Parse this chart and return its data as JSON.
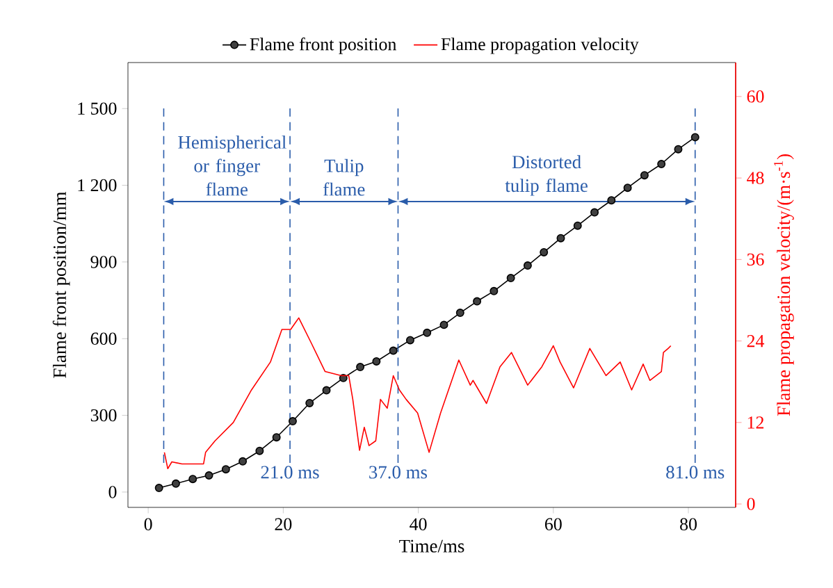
{
  "chart_data": {
    "type": "line",
    "xlabel": "Time/ms",
    "ylabel": "Flame front position/mm",
    "y2label": "Flame propagation velocity/(m·s$^{-1}$)",
    "legend": "top",
    "xlim": [
      -3,
      87
    ],
    "xticks": [
      0,
      20,
      40,
      60,
      80
    ],
    "ylim": [
      -60,
      1680
    ],
    "yticks": [
      0,
      300,
      600,
      900,
      {
        "value": 1200,
        "label": "1 200"
      },
      {
        "value": 1500,
        "label": "1 500"
      }
    ],
    "y2lim": [
      -0.5,
      65
    ],
    "y2ticks": [
      0,
      12,
      24,
      36,
      48,
      60
    ],
    "series": [
      {
        "name": "Flame front position",
        "color": "#000000",
        "marker": "circle",
        "x": [
          1.6,
          4.1,
          6.6,
          9.0,
          11.5,
          14.0,
          16.5,
          19.0,
          21.4,
          23.9,
          26.4,
          28.9,
          31.4,
          33.8,
          36.3,
          38.8,
          41.3,
          43.8,
          46.2,
          48.7,
          51.2,
          53.7,
          56.2,
          58.6,
          61.1,
          63.6,
          66.1,
          68.6,
          71.0,
          73.5,
          76.0,
          78.5,
          81.0
        ],
        "values": [
          16,
          33,
          51,
          65,
          89,
          120,
          161,
          214,
          277,
          348,
          398,
          446,
          489,
          511,
          553,
          594,
          623,
          654,
          701,
          746,
          786,
          837,
          886,
          938,
          993,
          1042,
          1094,
          1141,
          1190,
          1239,
          1283,
          1341,
          1388
        ]
      },
      {
        "name": "Flame propagation velocity",
        "color": "#ff0000",
        "axis": "y2",
        "marker": "none",
        "x": [
          2.4,
          2.9,
          3.5,
          5.0,
          8.2,
          8.5,
          9.9,
          12.6,
          15.3,
          18.1,
          19.8,
          21.1,
          21.8,
          22.3,
          22.8,
          24.2,
          26.2,
          28.6,
          29.7,
          30.3,
          31.3,
          32.0,
          32.7,
          33.7,
          34.4,
          35.4,
          36.3,
          37.2,
          38.2,
          39.9,
          41.6,
          43.3,
          46.0,
          47.7,
          48.1,
          50.1,
          52.1,
          53.8,
          56.2,
          58.3,
          60.0,
          61.0,
          63.0,
          65.4,
          67.8,
          69.9,
          71.6,
          73.3,
          74.3,
          76.0,
          76.3,
          77.0,
          77.4
        ],
        "values": [
          7.6,
          5.2,
          6.2,
          5.9,
          5.9,
          7.6,
          9.3,
          12.0,
          16.8,
          20.9,
          25.7,
          25.7,
          26.7,
          27.4,
          26.4,
          23.6,
          19.5,
          18.9,
          18.9,
          15.4,
          7.9,
          11.3,
          8.6,
          9.3,
          15.4,
          14.1,
          18.9,
          16.8,
          15.4,
          13.4,
          7.6,
          13.4,
          21.2,
          17.5,
          18.2,
          14.8,
          20.2,
          22.3,
          17.5,
          20.2,
          23.3,
          20.9,
          17.1,
          22.9,
          18.9,
          20.9,
          16.8,
          20.6,
          18.2,
          19.5,
          22.3,
          22.9,
          23.3
        ]
      }
    ],
    "ref_lines": [
      {
        "axis": "x",
        "value": 2.3,
        "color": "#2a5caa",
        "line_style": "dashed"
      },
      {
        "axis": "x",
        "value": 21,
        "label": "21.0 ms",
        "color": "#2a5caa",
        "line_style": "dashed"
      },
      {
        "axis": "x",
        "value": 37,
        "label": "37.0 ms",
        "color": "#2a5caa",
        "line_style": "dashed"
      },
      {
        "axis": "x",
        "value": 81,
        "label": "81.0 ms",
        "color": "#2a5caa",
        "line_style": "dashed"
      }
    ],
    "annotations": [
      "Hemispherical or finger flame",
      "Tulip flame",
      "Distorted tulip flame"
    ]
  }
}
